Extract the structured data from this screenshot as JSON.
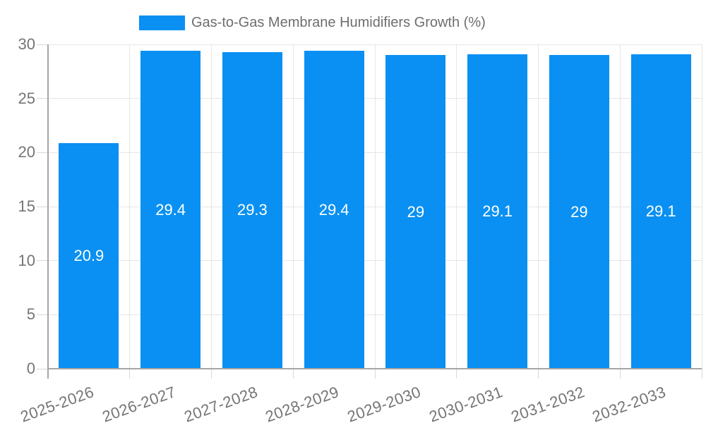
{
  "chart_data": {
    "type": "bar",
    "title": "",
    "legend": {
      "label": "Gas-to-Gas Membrane Humidifiers Growth (%)",
      "position": "top"
    },
    "categories": [
      "2025-2026",
      "2026-2027",
      "2027-2028",
      "2028-2029",
      "2029-2030",
      "2030-2031",
      "2031-2032",
      "2032-2033"
    ],
    "series": [
      {
        "name": "Gas-to-Gas Membrane Humidifiers Growth (%)",
        "values": [
          20.9,
          29.4,
          29.3,
          29.4,
          29,
          29.1,
          29,
          29.1
        ],
        "value_labels": [
          "20.9",
          "29.4",
          "29.3",
          "29.4",
          "29",
          "29.1",
          "29",
          "29.1"
        ]
      }
    ],
    "xlabel": "",
    "ylabel": "",
    "ylim": [
      0,
      30
    ],
    "yticks": [
      0,
      5,
      10,
      15,
      20,
      25,
      30
    ],
    "ytick_labels": [
      "0",
      "5",
      "10",
      "15",
      "20",
      "25",
      "30"
    ],
    "grid": true,
    "colors": {
      "bar": "#0990f2",
      "grid": "#e6e6e6",
      "tick": "#d9d9d9",
      "axis": "#a6a6a6",
      "axis_text": "#757575",
      "legend_text": "#6e6e6e",
      "value_text": "#ffffff",
      "background": "#ffffff"
    }
  }
}
